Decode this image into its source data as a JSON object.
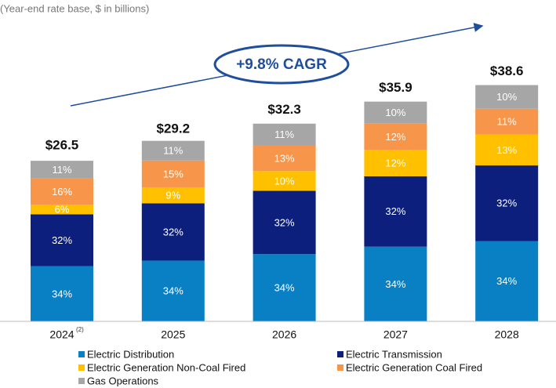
{
  "chart_data": {
    "type": "stacked_bar",
    "subtitle": "(Year-end rate base, $ in billions)",
    "annotation": "+9.8% CAGR",
    "categories": [
      "2024",
      "2025",
      "2026",
      "2027",
      "2028"
    ],
    "category_notes": [
      "(2)",
      null,
      null,
      null,
      null
    ],
    "totals": {
      "values": [
        26.5,
        29.2,
        32.3,
        35.9,
        38.6
      ],
      "value_labels": [
        "$26.5",
        "$29.2",
        "$32.3",
        "$35.9",
        "$38.6"
      ]
    },
    "series": [
      {
        "name": "Electric Distribution",
        "color": "#0a80c4",
        "values": [
          34,
          34,
          34,
          34,
          34
        ],
        "value_labels": [
          "34%",
          "34%",
          "34%",
          "34%",
          "34%"
        ]
      },
      {
        "name": "Electric Transmission",
        "color": "#0d1f7c",
        "values": [
          32,
          32,
          32,
          32,
          32
        ],
        "value_labels": [
          "32%",
          "32%",
          "32%",
          "32%",
          "32%"
        ]
      },
      {
        "name": "Electric Generation Non-Coal Fired",
        "color": "#ffc000",
        "values": [
          6,
          9,
          10,
          12,
          13
        ],
        "value_labels": [
          "6%",
          "9%",
          "10%",
          "12%",
          "13%"
        ]
      },
      {
        "name": "Electric Generation Coal Fired",
        "color": "#f7964a",
        "values": [
          16,
          15,
          13,
          12,
          11
        ],
        "value_labels": [
          "16%",
          "15%",
          "13%",
          "12%",
          "11%"
        ]
      },
      {
        "name": "Gas Operations",
        "color": "#a6a6a6",
        "values": [
          11,
          11,
          11,
          10,
          10
        ],
        "value_labels": [
          "11%",
          "11%",
          "11%",
          "10%",
          "10%"
        ]
      }
    ]
  }
}
